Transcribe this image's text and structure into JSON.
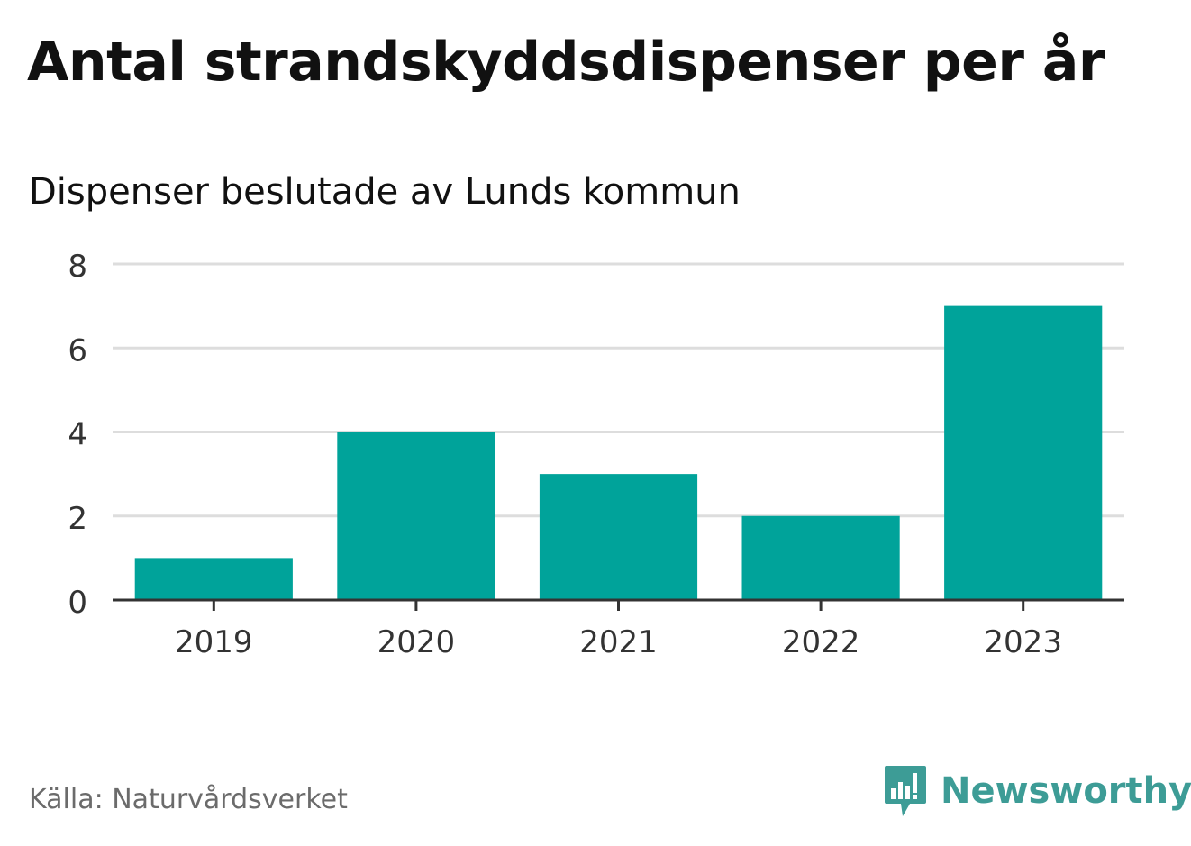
{
  "title": "Antal strandskyddsdispenser per år",
  "subtitle": "Dispenser beslutade av Lunds kommun",
  "source": "Källa: Naturvårdsverket",
  "brand": "Newsworthy",
  "colors": {
    "bar": "#00a39a",
    "grid": "#dddddd",
    "axis": "#333333",
    "brand": "#3d9c96"
  },
  "chart_data": {
    "type": "bar",
    "categories": [
      "2019",
      "2020",
      "2021",
      "2022",
      "2023"
    ],
    "values": [
      1,
      4,
      3,
      2,
      7
    ],
    "title": "Antal strandskyddsdispenser per år",
    "subtitle": "Dispenser beslutade av Lunds kommun",
    "xlabel": "",
    "ylabel": "",
    "ylim": [
      0,
      8
    ],
    "yticks": [
      0,
      2,
      4,
      6,
      8
    ],
    "grid": true,
    "legend": "none"
  }
}
